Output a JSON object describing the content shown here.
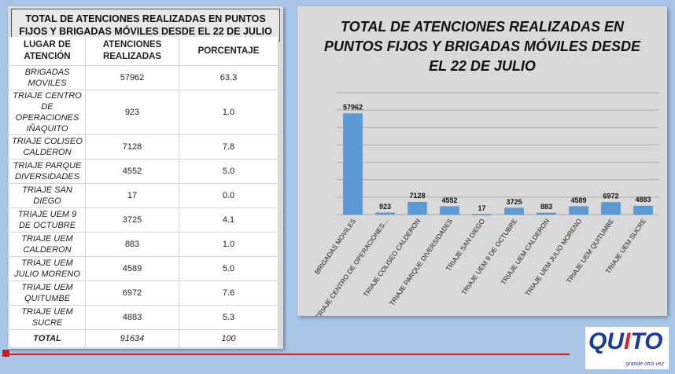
{
  "table": {
    "title": "TOTAL DE ATENCIONES REALIZADAS EN PUNTOS FIJOS Y BRIGADAS MÓVILES DESDE EL 22 DE JULIO",
    "headers": [
      "LUGAR DE ATENCIÓN",
      "ATENCIONES REALIZADAS",
      "PORCENTAJE"
    ],
    "rows": [
      {
        "place": "BRIGADAS MOVILES",
        "value": "57962",
        "pct": "63.3"
      },
      {
        "place": "TRIAJE CENTRO DE OPERACIONES IÑAQUITO",
        "value": "923",
        "pct": "1.0"
      },
      {
        "place": "TRIAJE COLISEO CALDERON",
        "value": "7128",
        "pct": "7.8"
      },
      {
        "place": "TRIAJE PARQUE DIVERSIDADES",
        "value": "4552",
        "pct": "5.0"
      },
      {
        "place": "TRIAJE SAN DIEGO",
        "value": "17",
        "pct": "0.0"
      },
      {
        "place": "TRIAJE UEM 9 DE OCTUBRE",
        "value": "3725",
        "pct": "4.1"
      },
      {
        "place": "TRIAJE UEM CALDERON",
        "value": "883",
        "pct": "1.0"
      },
      {
        "place": "TRIAJE UEM JULIO MORENO",
        "value": "4589",
        "pct": "5.0"
      },
      {
        "place": "TRIAJE UEM QUITUMBE",
        "value": "6972",
        "pct": "7.6"
      },
      {
        "place": "TRIAJE UEM SUCRE",
        "value": "4883",
        "pct": "5.3"
      }
    ],
    "total": {
      "label": "TOTAL",
      "value": "91634",
      "pct": "100"
    }
  },
  "chart_data": {
    "type": "bar",
    "title": "TOTAL DE ATENCIONES REALIZADAS EN PUNTOS FIJOS Y BRIGADAS MÓVILES DESDE EL 22 DE JULIO",
    "categories": [
      "BRIGADAS MOVILES",
      "TRIAJE CENTRO DE OPERACIONES...",
      "TRIAJE COLISEO CALDERON",
      "TRIAJE PARQUE DIVERSIDADES",
      "TRIAJE SAN DIEGO",
      "TRIAJE UEM 9 DE OCTUBRE",
      "TRIAJE UEM CALDERON",
      "TRIAJE UEM JULIO MORENO",
      "TRIAJE UEM QUITUMBE",
      "TRIAJE UEM SUCRE"
    ],
    "values": [
      57962,
      923,
      7128,
      4552,
      17,
      3725,
      883,
      4589,
      6972,
      4883
    ],
    "ylim": [
      0,
      70000
    ],
    "grid": true,
    "bar_color": "#5b9bd5"
  },
  "logo": {
    "text_q": "QU",
    "text_i": "I",
    "text_to": "TO",
    "tagline": "grande otra vez"
  }
}
